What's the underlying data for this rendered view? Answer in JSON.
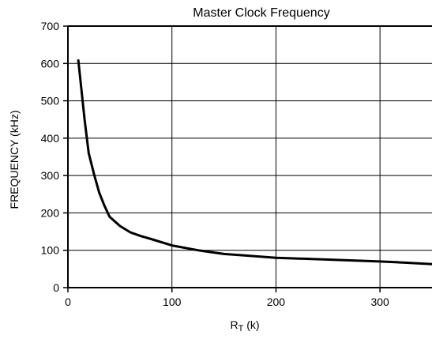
{
  "chart_data": {
    "type": "line",
    "title": "Master Clock Frequency",
    "xlabel_main": "R",
    "xlabel_sub": "T",
    "xlabel_unit": " (k)",
    "ylabel": "FREQUENCY (kHz)",
    "xlim": [
      0,
      350
    ],
    "ylim": [
      0,
      700
    ],
    "xticks": [
      0,
      100,
      200,
      300
    ],
    "yticks": [
      0,
      100,
      200,
      300,
      400,
      500,
      600,
      700
    ],
    "grid": true,
    "series": [
      {
        "x": [
          10,
          13,
          16,
          20,
          25,
          30,
          35,
          40,
          50,
          60,
          70,
          80,
          100,
          125,
          150,
          175,
          200,
          250,
          300,
          315,
          350
        ],
        "y": [
          608,
          530,
          450,
          360,
          305,
          255,
          220,
          190,
          165,
          148,
          138,
          130,
          113,
          100,
          90,
          85,
          80,
          75,
          70,
          68,
          63
        ]
      }
    ]
  },
  "colors": {
    "line": "#000000",
    "grid": "#000000",
    "background": "#ffffff"
  }
}
